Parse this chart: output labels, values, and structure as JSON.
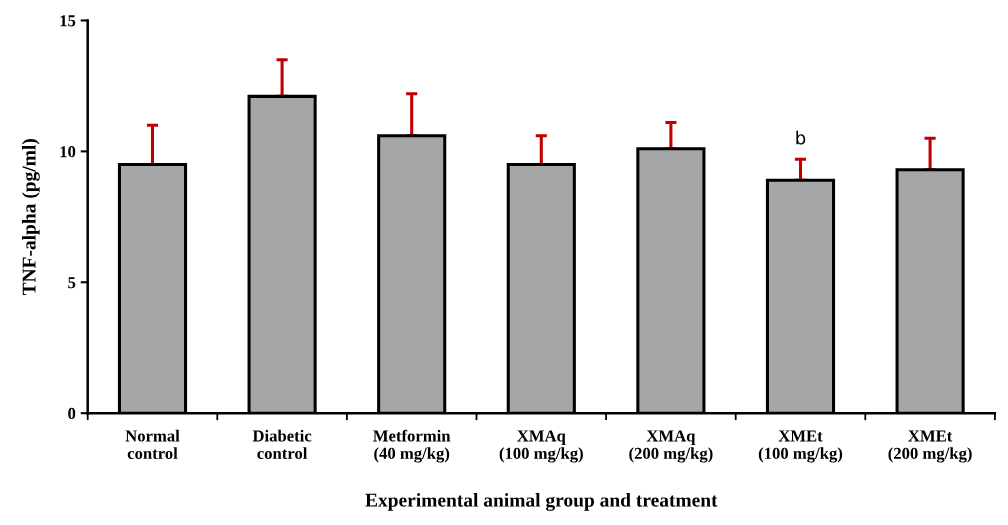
{
  "chart_data": {
    "type": "bar",
    "categories": [
      "Normal\ncontrol",
      "Diabetic\ncontrol",
      "Metformin\n(40 mg/kg)",
      "XMAq\n(100 mg/kg)",
      "XMAq\n(200 mg/kg)",
      "XMEt\n(100 mg/kg)",
      "XMEt\n(200 mg/kg)"
    ],
    "values": [
      9.5,
      12.1,
      10.6,
      9.5,
      10.1,
      8.9,
      9.3
    ],
    "errors": [
      [
        9.5,
        11.0
      ],
      [
        12.1,
        13.5
      ],
      [
        10.6,
        12.2
      ],
      [
        9.5,
        10.6
      ],
      [
        10.1,
        11.1
      ],
      [
        8.9,
        9.7
      ],
      [
        9.3,
        10.5
      ]
    ],
    "color": "#a6a6a6",
    "xlabel": "Experimental animal group and treatment",
    "ylabel": "TNF-alpha (pg/ml)",
    "ylim": [
      0,
      15
    ],
    "yticks": [
      0,
      5,
      10,
      15
    ],
    "annotations": [
      {
        "text": "b",
        "x": "XMEt\n(100 mg/kg)",
        "y": 9.7
      }
    ],
    "grid": false,
    "legend": false
  }
}
